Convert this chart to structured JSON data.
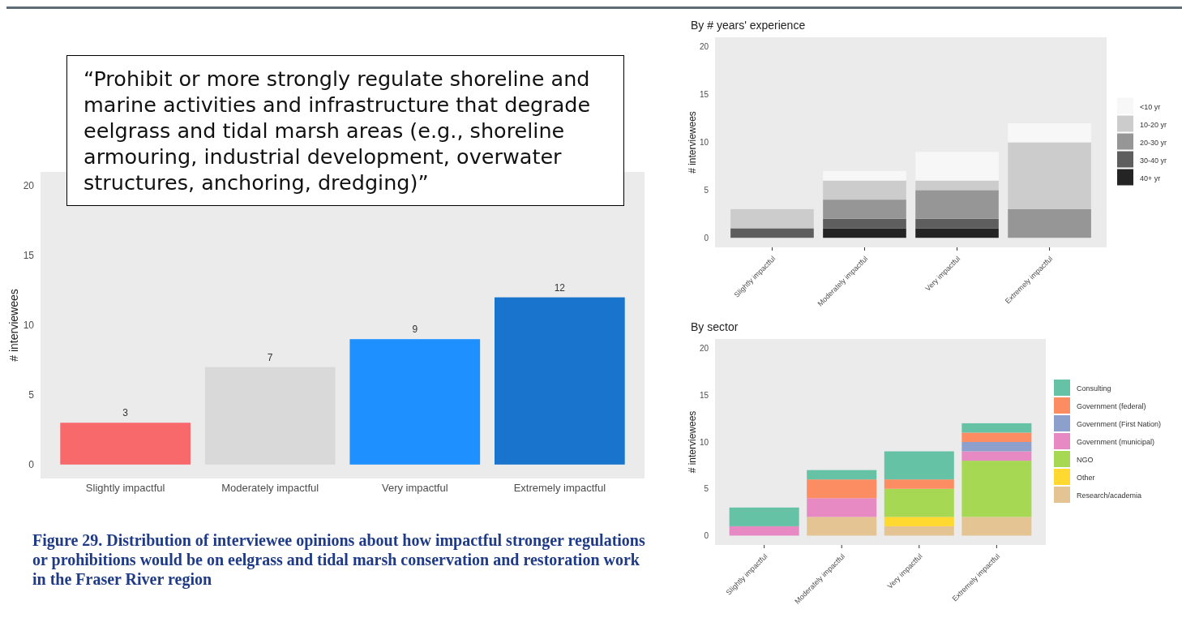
{
  "chart_data": [
    {
      "type": "bar",
      "ylabel": "# interviewees",
      "categories": [
        "Slightly impactful",
        "Moderately impactful",
        "Very impactful",
        "Extremely impactful"
      ],
      "values": [
        3,
        7,
        9,
        12
      ],
      "colors": [
        "#f8696b",
        "#d9d9d9",
        "#1e90ff",
        "#1874cd"
      ],
      "data_labels": true,
      "ylim": [
        -1,
        21
      ],
      "yticks": [
        0,
        5,
        10,
        15,
        20
      ],
      "grid": false,
      "annotations": [
        "“Prohibit or more strongly regulate shoreline and marine activities and infrastructure that degrade eelgrass and tidal marsh areas (e.g., shoreline armouring, industrial development, overwater structures, anchoring, dredging)”",
        "Figure 29. Distribution of interviewee opinions about how impactful stronger regulations or prohibitions would be on eelgrass and tidal marsh conservation and restoration work in the Fraser River region"
      ]
    },
    {
      "type": "bar",
      "title": "By # years' experience",
      "ylabel": "# interviewees",
      "categories": [
        "Slightly impactful",
        "Moderately impactful",
        "Very impactful",
        "Extremely impactful"
      ],
      "stacked": true,
      "legend": "right",
      "ylim": [
        -1,
        21
      ],
      "yticks": [
        0,
        5,
        10,
        15,
        20
      ],
      "grid": false,
      "series": [
        {
          "name": "40+ yr",
          "color": "#242424",
          "values": [
            0,
            1,
            1,
            0
          ]
        },
        {
          "name": "30-40 yr",
          "color": "#5e5e5e",
          "values": [
            1,
            1,
            1,
            0
          ]
        },
        {
          "name": "20-30 yr",
          "color": "#969696",
          "values": [
            0,
            2,
            3,
            3
          ]
        },
        {
          "name": "10-20 yr",
          "color": "#cccccc",
          "values": [
            2,
            2,
            1,
            7
          ]
        },
        {
          "name": "<10 yr",
          "color": "#f7f7f7",
          "values": [
            0,
            1,
            3,
            2
          ]
        }
      ]
    },
    {
      "type": "bar",
      "title": "By sector",
      "ylabel": "# interviewees",
      "categories": [
        "Slightly impactful",
        "Moderately impactful",
        "Very impactful",
        "Extremely impactful"
      ],
      "stacked": true,
      "legend": "right",
      "ylim": [
        -1,
        21
      ],
      "yticks": [
        0,
        5,
        10,
        15,
        20
      ],
      "grid": false,
      "series": [
        {
          "name": "Research/academia",
          "color": "#e5c494",
          "values": [
            0,
            2,
            1,
            2
          ]
        },
        {
          "name": "Other",
          "color": "#ffd92f",
          "values": [
            0,
            0,
            1,
            0
          ]
        },
        {
          "name": "NGO",
          "color": "#a6d854",
          "values": [
            0,
            0,
            3,
            6
          ]
        },
        {
          "name": "Government (municipal)",
          "color": "#e78ac3",
          "values": [
            1,
            2,
            0,
            1
          ]
        },
        {
          "name": "Government (First Nation)",
          "color": "#8da0cb",
          "values": [
            0,
            0,
            0,
            1
          ]
        },
        {
          "name": "Government (federal)",
          "color": "#fc8d62",
          "values": [
            0,
            2,
            1,
            1
          ]
        },
        {
          "name": "Consulting",
          "color": "#66c2a5",
          "values": [
            2,
            1,
            3,
            1
          ]
        }
      ]
    }
  ]
}
